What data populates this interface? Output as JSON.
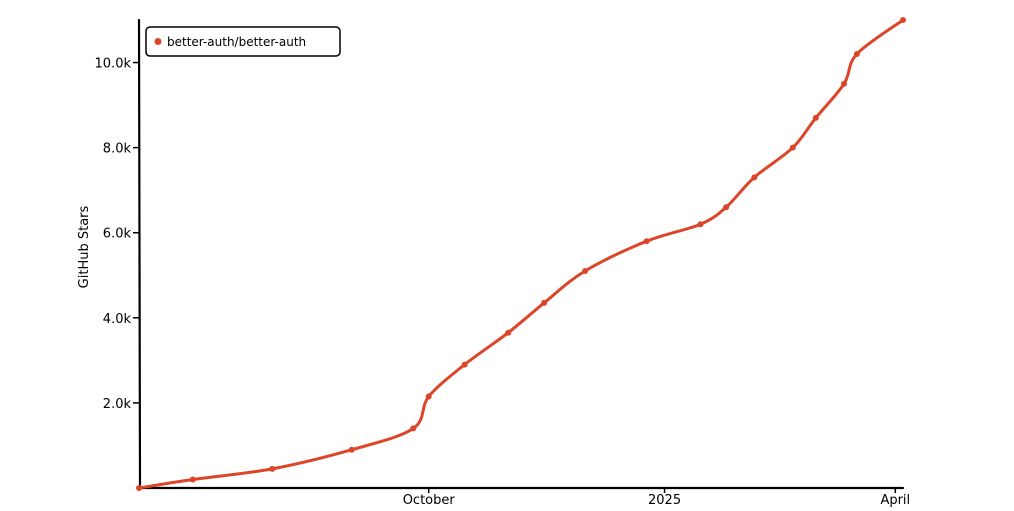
{
  "chart_data": {
    "type": "line",
    "ylabel": "GitHub Stars",
    "xlabel": "",
    "ylim": [
      0,
      11000
    ],
    "yticks": [
      {
        "value": 2000,
        "label": "2.0k"
      },
      {
        "value": 4000,
        "label": "4.0k"
      },
      {
        "value": 6000,
        "label": "6.0k"
      },
      {
        "value": 8000,
        "label": "8.0k"
      },
      {
        "value": 10000,
        "label": "10.0k"
      }
    ],
    "xrange": [
      "2024-06-10",
      "2025-04-04"
    ],
    "xticks": [
      {
        "value": "2024-10-01",
        "label": "October"
      },
      {
        "value": "2025-01-01",
        "label": "2025"
      },
      {
        "value": "2025-04-01",
        "label": "April"
      }
    ],
    "legend": {
      "position": "top-left"
    },
    "series": [
      {
        "name": "better-auth/better-auth",
        "color": "#dd4528",
        "points": [
          [
            "2024-06-10",
            0
          ],
          [
            "2024-07-01",
            200
          ],
          [
            "2024-08-01",
            450
          ],
          [
            "2024-09-01",
            900
          ],
          [
            "2024-09-25",
            1400
          ],
          [
            "2024-10-01",
            2150
          ],
          [
            "2024-10-15",
            2900
          ],
          [
            "2024-11-01",
            3650
          ],
          [
            "2024-11-15",
            4350
          ],
          [
            "2024-12-01",
            5100
          ],
          [
            "2024-12-25",
            5800
          ],
          [
            "2025-01-15",
            6200
          ],
          [
            "2025-01-25",
            6600
          ],
          [
            "2025-02-05",
            7300
          ],
          [
            "2025-02-20",
            8000
          ],
          [
            "2025-03-01",
            8700
          ],
          [
            "2025-03-12",
            9500
          ],
          [
            "2025-03-17",
            10200
          ],
          [
            "2025-04-04",
            11000
          ]
        ]
      }
    ]
  }
}
